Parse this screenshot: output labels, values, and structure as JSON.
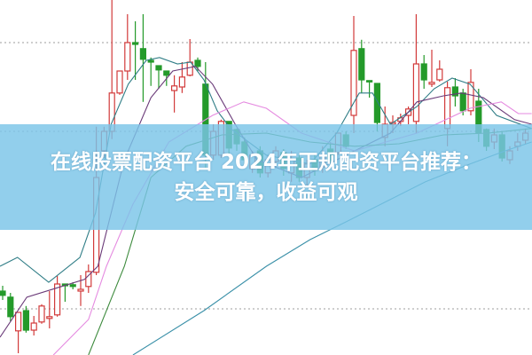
{
  "banner": {
    "line1": "在线股票配资平台 2024年正规配资平台推荐：",
    "line2": "安全可靠，收益可观"
  },
  "colors": {
    "up": "#d23a3a",
    "down": "#249a2a",
    "banner": "#7ac4e8",
    "grid": "#b0b0b0"
  },
  "chart_data": {
    "type": "candlestick",
    "title": "",
    "xlabel": "",
    "ylabel": "",
    "ylim": [
      0,
      100
    ],
    "grid": "dotted horizontal",
    "gridlines": [
      88,
      63,
      13
    ],
    "candles": [
      {
        "o": 18,
        "c": 16.8,
        "h": 19.5,
        "l": 15.5
      },
      {
        "o": 16.3,
        "c": 10.8,
        "h": 17.5,
        "l": 9.5
      },
      {
        "o": 6.8,
        "c": 12,
        "h": 12,
        "l": 0.5
      },
      {
        "o": 12.5,
        "c": 7,
        "h": 13.8,
        "l": 6.3
      },
      {
        "o": 7,
        "c": 9,
        "h": 11,
        "l": 5.5
      },
      {
        "o": 9.3,
        "c": 13.8,
        "h": 14.3,
        "l": 8.8
      },
      {
        "o": 10.3,
        "c": 10.8,
        "h": 18,
        "l": 7.5
      },
      {
        "o": 11.3,
        "c": 20,
        "h": 22.3,
        "l": 10.8
      },
      {
        "o": 20,
        "c": 19.5,
        "h": 20,
        "l": 15
      },
      {
        "o": 19.8,
        "c": 19.3,
        "h": 20.5,
        "l": 18.5
      },
      {
        "o": 18,
        "c": 18.5,
        "h": 22.5,
        "l": 13.8
      },
      {
        "o": 19.3,
        "c": 23.5,
        "h": 25.5,
        "l": 17.5
      },
      {
        "o": 23.3,
        "c": 50,
        "h": 64.3,
        "l": 22.5
      },
      {
        "o": 57.5,
        "c": 63,
        "h": 64.3,
        "l": 55.5
      },
      {
        "o": 63,
        "c": 73.8,
        "h": 100,
        "l": 60.8
      },
      {
        "o": 73.8,
        "c": 80,
        "h": 80,
        "l": 73.3
      },
      {
        "o": 80,
        "c": 88,
        "h": 96,
        "l": 77.5
      },
      {
        "o": 88,
        "c": 87.5,
        "h": 94,
        "l": 77.5
      },
      {
        "o": 86.3,
        "c": 83.3,
        "h": 96,
        "l": 71.3
      },
      {
        "o": 83,
        "c": 82.5,
        "h": 83.8,
        "l": 75.8
      },
      {
        "o": 81.5,
        "c": 80.3,
        "h": 81.5,
        "l": 75
      },
      {
        "o": 80,
        "c": 78.8,
        "h": 80,
        "l": 75.8
      },
      {
        "o": 74.5,
        "c": 75.8,
        "h": 78.8,
        "l": 68.3
      },
      {
        "o": 75.5,
        "c": 78.3,
        "h": 82.5,
        "l": 73.8
      },
      {
        "o": 78.8,
        "c": 82.5,
        "h": 89,
        "l": 78.5
      },
      {
        "o": 83,
        "c": 81.3,
        "h": 83.8,
        "l": 80
      },
      {
        "o": 76.3,
        "c": 56.3,
        "h": 82.5,
        "l": 52.5
      },
      {
        "o": 56.3,
        "c": 63,
        "h": 65,
        "l": 55
      },
      {
        "o": 56.3,
        "c": 65.8,
        "h": 66.3,
        "l": 55.5
      },
      {
        "o": 65.8,
        "c": 58.3,
        "h": 65.8,
        "l": 56.3
      },
      {
        "o": 63.5,
        "c": 59.5,
        "h": 63.8,
        "l": 57.5
      },
      {
        "o": 60,
        "c": 55,
        "h": 61.3,
        "l": 53.8
      },
      {
        "o": 52.5,
        "c": 56.3,
        "h": 57.5,
        "l": 51.3
      },
      {
        "o": 57.5,
        "c": 51.3,
        "h": 58.8,
        "l": 50
      },
      {
        "o": 51.3,
        "c": 55,
        "h": 56.3,
        "l": 50
      },
      {
        "o": 54.5,
        "c": 57.5,
        "h": 58.8,
        "l": 53
      },
      {
        "o": 57,
        "c": 52.5,
        "h": 58,
        "l": 50.5
      },
      {
        "o": 51.3,
        "c": 55,
        "h": 57.5,
        "l": 48.8
      },
      {
        "o": 55.5,
        "c": 50,
        "h": 56.3,
        "l": 48.8
      },
      {
        "o": 50,
        "c": 53.8,
        "h": 55,
        "l": 47.5
      },
      {
        "o": 55,
        "c": 52,
        "h": 56.3,
        "l": 50.5
      },
      {
        "o": 53,
        "c": 56.3,
        "h": 58.8,
        "l": 51.3
      },
      {
        "o": 58,
        "c": 55,
        "h": 60,
        "l": 53.8
      },
      {
        "o": 57,
        "c": 62.5,
        "h": 62.5,
        "l": 56.3
      },
      {
        "o": 62,
        "c": 58.8,
        "h": 63,
        "l": 58
      },
      {
        "o": 67.5,
        "c": 85.8,
        "h": 95.5,
        "l": 62.5
      },
      {
        "o": 86.3,
        "c": 77.5,
        "h": 88.8,
        "l": 73.8
      },
      {
        "o": 77.3,
        "c": 77,
        "h": 77.3,
        "l": 72.5
      },
      {
        "o": 76.5,
        "c": 65.5,
        "h": 76.5,
        "l": 63
      },
      {
        "o": 61.3,
        "c": 65,
        "h": 70,
        "l": 58.8
      },
      {
        "o": 65,
        "c": 65.5,
        "h": 67.5,
        "l": 62.5
      },
      {
        "o": 65.8,
        "c": 66.8,
        "h": 68,
        "l": 64.5
      },
      {
        "o": 67.5,
        "c": 69.3,
        "h": 70,
        "l": 65
      },
      {
        "o": 65.8,
        "c": 82,
        "h": 96,
        "l": 62.5
      },
      {
        "o": 82,
        "c": 77.5,
        "h": 84.5,
        "l": 75
      },
      {
        "o": 76.3,
        "c": 76.8,
        "h": 86,
        "l": 75.5
      },
      {
        "o": 77.5,
        "c": 80.5,
        "h": 83,
        "l": 77
      },
      {
        "o": 63.8,
        "c": 75.3,
        "h": 77,
        "l": 58.8
      },
      {
        "o": 75.5,
        "c": 73,
        "h": 78,
        "l": 70
      },
      {
        "o": 73.8,
        "c": 68.8,
        "h": 75,
        "l": 67.5
      },
      {
        "o": 68.8,
        "c": 76.8,
        "h": 80.5,
        "l": 67.5
      },
      {
        "o": 71.5,
        "c": 62.5,
        "h": 75,
        "l": 60
      },
      {
        "o": 63.5,
        "c": 58.8,
        "h": 63.8,
        "l": 57.5
      },
      {
        "o": 60,
        "c": 62,
        "h": 63.8,
        "l": 58
      },
      {
        "o": 62,
        "c": 55.5,
        "h": 63,
        "l": 54.5
      },
      {
        "o": 55,
        "c": 57.5,
        "h": 58.8,
        "l": 53.8
      },
      {
        "o": 58.8,
        "c": 60,
        "h": 62.5,
        "l": 57.5
      },
      {
        "o": 60.5,
        "c": 62.5,
        "h": 63.8,
        "l": 59.5
      }
    ],
    "moving_averages": [
      {
        "color": "#2f7d86",
        "points": [
          [
            0.66,
            25
          ],
          [
            2.9,
            27.5
          ],
          [
            6.9,
            20.5
          ],
          [
            10.9,
            27.5
          ],
          [
            12.9,
            40
          ],
          [
            14.9,
            65
          ],
          [
            17.1,
            76.3
          ],
          [
            19.4,
            83
          ],
          [
            21.1,
            83.8
          ],
          [
            23.4,
            82
          ],
          [
            25.1,
            82.5
          ],
          [
            26.8,
            77.5
          ],
          [
            28.5,
            68.8
          ],
          [
            30.2,
            63.8
          ],
          [
            34.8,
            56.3
          ],
          [
            40.4,
            53.8
          ],
          [
            43.8,
            62.5
          ],
          [
            46.7,
            73.8
          ],
          [
            48.4,
            73.8
          ],
          [
            50.7,
            65
          ],
          [
            54.1,
            70
          ],
          [
            56.3,
            75
          ],
          [
            58.6,
            78
          ],
          [
            60.9,
            76.3
          ],
          [
            64.3,
            67.5
          ],
          [
            68.8,
            63.8
          ]
        ]
      },
      {
        "color": "#6a3a78",
        "points": [
          [
            0.66,
            5
          ],
          [
            4.1,
            16.3
          ],
          [
            7.8,
            18.8
          ],
          [
            11.5,
            21.3
          ],
          [
            13.2,
            25
          ],
          [
            16.6,
            55
          ],
          [
            20,
            72.5
          ],
          [
            22.8,
            80
          ],
          [
            25.7,
            81.3
          ],
          [
            27.9,
            76.3
          ],
          [
            30.8,
            65
          ],
          [
            33.6,
            55
          ],
          [
            39.3,
            50
          ],
          [
            46.1,
            57.5
          ],
          [
            50.7,
            62.5
          ],
          [
            54.1,
            71.3
          ],
          [
            57.5,
            73
          ],
          [
            59.8,
            73.8
          ],
          [
            62.6,
            72.5
          ],
          [
            66.6,
            66.3
          ],
          [
            68.8,
            65
          ]
        ]
      },
      {
        "color": "#e58ae0",
        "points": [
          [
            7.5,
            0
          ],
          [
            12,
            10
          ],
          [
            14.3,
            25
          ],
          [
            17.7,
            42.5
          ],
          [
            22.3,
            60
          ],
          [
            27.9,
            67.5
          ],
          [
            31.9,
            71.3
          ],
          [
            34.8,
            69.5
          ],
          [
            39.3,
            62.5
          ],
          [
            46.1,
            57.5
          ],
          [
            54.1,
            62.5
          ],
          [
            60.9,
            69.5
          ],
          [
            64.9,
            71.3
          ],
          [
            67.1,
            68
          ],
          [
            68.8,
            68
          ]
        ]
      },
      {
        "color": "#3c8a3c",
        "points": [
          [
            12,
            0
          ],
          [
            16.6,
            25
          ],
          [
            20,
            50
          ],
          [
            24.5,
            58.8
          ],
          [
            29.1,
            62
          ],
          [
            34.8,
            62.5
          ],
          [
            40.4,
            60
          ],
          [
            46.1,
            58.8
          ],
          [
            51.8,
            59.5
          ],
          [
            57.5,
            62
          ],
          [
            63.2,
            62.5
          ],
          [
            68.8,
            63.8
          ]
        ]
      },
      {
        "color": "#3a90a8",
        "points": [
          [
            17.7,
            0
          ],
          [
            26.8,
            12.5
          ],
          [
            34.8,
            25
          ],
          [
            40.4,
            32.5
          ],
          [
            45,
            37.5
          ],
          [
            49.5,
            42.5
          ],
          [
            55.2,
            48.8
          ],
          [
            60.9,
            53.8
          ],
          [
            65.4,
            57.5
          ],
          [
            68.8,
            60
          ]
        ]
      }
    ]
  }
}
